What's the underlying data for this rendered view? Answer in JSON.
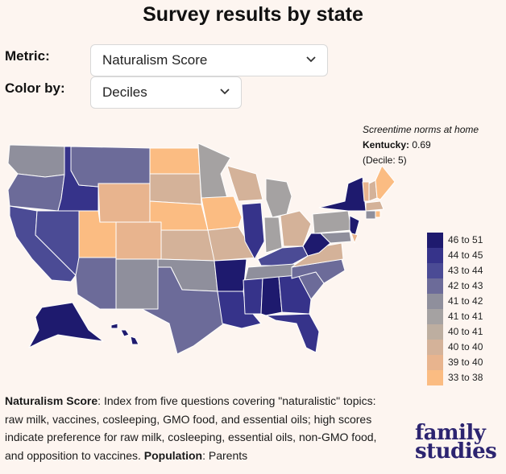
{
  "title": "Survey results by state",
  "controls": {
    "metric_label": "Metric:",
    "metric_value": "Naturalism Score",
    "color_label": "Color by:",
    "color_value": "Deciles"
  },
  "tooltip": {
    "question": "Screentime norms at home",
    "state": "Kentucky:",
    "value": "0.69",
    "decile": "(Decile: 5)"
  },
  "legend": [
    {
      "label": "46 to 51",
      "color": "#1e1a6e"
    },
    {
      "label": "44 to 45",
      "color": "#36338a"
    },
    {
      "label": "43 to 44",
      "color": "#4b4b95"
    },
    {
      "label": "42 to 43",
      "color": "#6c6b99"
    },
    {
      "label": "41 to 42",
      "color": "#8f8f9c"
    },
    {
      "label": "41 to 41",
      "color": "#a5a2a2"
    },
    {
      "label": "40 to 41",
      "color": "#bdaea0"
    },
    {
      "label": "40 to 40",
      "color": "#d4b299"
    },
    {
      "label": "39 to 40",
      "color": "#e8b48e"
    },
    {
      "label": "33 to 38",
      "color": "#fbbc82"
    }
  ],
  "description": {
    "metric_name": "Naturalism Score",
    "text": ": Index from five questions covering \"naturalistic\" topics: raw milk, vaccines, cosleeping, GMO food, and essential oils; high scores indicate preference for raw milk, cosleeping, essential oils, non-GMO food, and opposition to vaccines. ",
    "population_label": "Population",
    "population_value": ": Parents"
  },
  "brand": {
    "line1": "family",
    "line2": "studies"
  },
  "icons": {
    "dropdown": "chevron-down-icon"
  }
}
